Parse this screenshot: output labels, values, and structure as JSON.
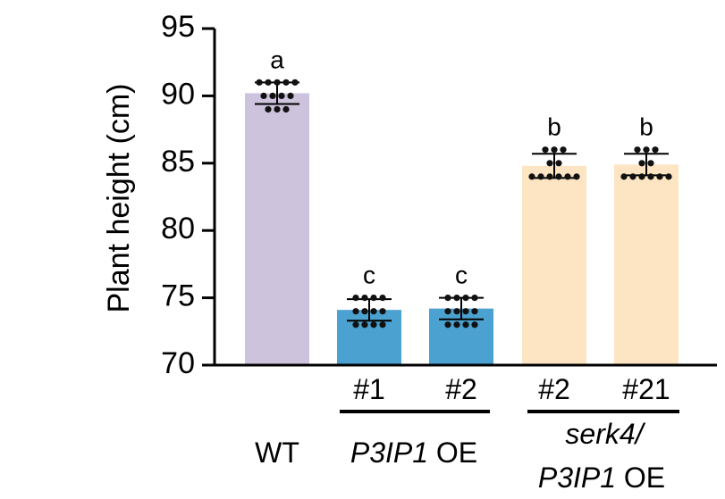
{
  "chart_data": {
    "type": "bar",
    "ylabel": "Plant height (cm)",
    "ylim": [
      70,
      95
    ],
    "yticks": [
      70,
      75,
      80,
      85,
      90,
      95
    ],
    "grid": false,
    "legend": "none",
    "bars": [
      {
        "line_label": "",
        "group_label": "WT",
        "value": 90.2,
        "error": 0.8,
        "significance": "a",
        "color": "#cdc3dd",
        "points": [
          91.0,
          91.0,
          91.0,
          91.0,
          91.0,
          90.0,
          90.0,
          90.0,
          90.0,
          89.0,
          89.0,
          89.0
        ]
      },
      {
        "line_label": "#1",
        "group_label": "P3IP1 OE",
        "value": 74.1,
        "error": 0.8,
        "significance": "c",
        "color": "#4ba1cf",
        "points": [
          75.0,
          75.0,
          75.0,
          75.0,
          74.0,
          74.0,
          74.0,
          74.0,
          73.0,
          73.0,
          73.0,
          73.0
        ]
      },
      {
        "line_label": "#2",
        "group_label": "P3IP1 OE",
        "value": 74.2,
        "error": 0.8,
        "significance": "c",
        "color": "#4ba1cf",
        "points": [
          75.0,
          75.0,
          75.0,
          75.0,
          74.0,
          74.0,
          74.0,
          74.0,
          73.0,
          73.0,
          73.0,
          73.0
        ]
      },
      {
        "line_label": "#2",
        "group_label": "serk4/ P3IP1 OE",
        "value": 84.8,
        "error": 0.9,
        "significance": "b",
        "color": "#fde5c3",
        "points": [
          86.0,
          86.0,
          86.0,
          85.0,
          85.0,
          84.0,
          84.0,
          84.0,
          84.0,
          84.0,
          84.0
        ]
      },
      {
        "line_label": "#21",
        "group_label": "serk4/ P3IP1 OE",
        "value": 84.9,
        "error": 0.8,
        "significance": "b",
        "color": "#fde5c3",
        "points": [
          86.0,
          86.0,
          86.0,
          85.0,
          85.0,
          84.0,
          84.0,
          84.0,
          84.0,
          84.0,
          84.0
        ]
      }
    ],
    "group_labels": {
      "wt": "WT",
      "p3ip1_oe_gene": "P3IP1",
      "p3ip1_oe_suffix": " OE",
      "serk4_line1": "serk4/",
      "serk4_gene": "P3IP1",
      "serk4_suffix": " OE"
    }
  }
}
